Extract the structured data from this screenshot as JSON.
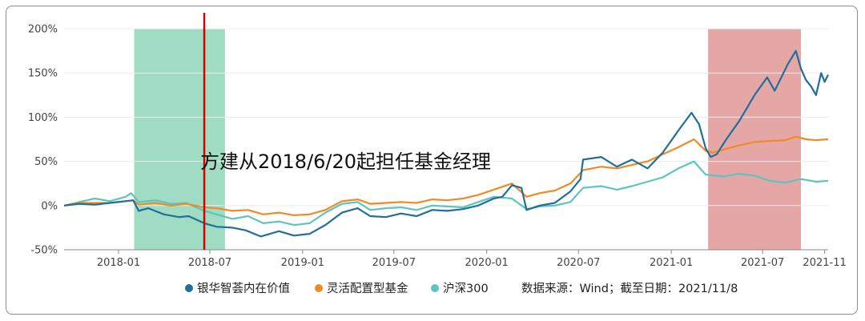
{
  "chart_data": {
    "type": "line",
    "y_unit": "%",
    "ylim": [
      -50,
      200
    ],
    "y_ticks": [
      "200%",
      "150%",
      "100%",
      "50%",
      "0%",
      "-50%"
    ],
    "y_tick_values": [
      200,
      150,
      100,
      50,
      0,
      -50
    ],
    "xlim": [
      "2017-09-15",
      "2021-11-08"
    ],
    "x_ticks": [
      "2018-01",
      "2018-07",
      "2019-01",
      "2019-07",
      "2020-01",
      "2020-07",
      "2021-01",
      "2021-07",
      "2021-11"
    ],
    "x_tick_dates": [
      "2018-01-01",
      "2018-07-01",
      "2019-01-01",
      "2019-07-01",
      "2020-01-01",
      "2020-07-01",
      "2021-01-01",
      "2021-07-01",
      "2021-11-01"
    ],
    "grid": true,
    "legend_position": "bottom",
    "annotation": "方建从2018/6/20起担任基金经理",
    "source_note": "数据来源：Wind；截至日期：2021/11/8",
    "highlights": [
      {
        "start": "2018-02-01",
        "end": "2018-07-31",
        "color": "#9fdcc3"
      },
      {
        "start": "2021-03-15",
        "end": "2021-09-15",
        "color": "#e5a6a6"
      }
    ],
    "marker_line": {
      "date": "2018-06-20",
      "color": "#d40000"
    },
    "series": [
      {
        "name": "银华智荟内在价值",
        "color": "#1f6f9a",
        "points": [
          [
            "2017-09-15",
            0
          ],
          [
            "2017-10-15",
            2
          ],
          [
            "2017-11-15",
            1
          ],
          [
            "2017-12-15",
            3
          ],
          [
            "2018-01-15",
            5
          ],
          [
            "2018-01-30",
            6
          ],
          [
            "2018-02-10",
            -6
          ],
          [
            "2018-03-01",
            -3
          ],
          [
            "2018-04-01",
            -10
          ],
          [
            "2018-05-01",
            -13
          ],
          [
            "2018-05-20",
            -12
          ],
          [
            "2018-06-20",
            -20
          ],
          [
            "2018-07-15",
            -24
          ],
          [
            "2018-08-15",
            -25
          ],
          [
            "2018-09-10",
            -28
          ],
          [
            "2018-10-10",
            -35
          ],
          [
            "2018-11-15",
            -29
          ],
          [
            "2018-12-15",
            -34
          ],
          [
            "2019-01-15",
            -32
          ],
          [
            "2019-02-15",
            -22
          ],
          [
            "2019-03-20",
            -8
          ],
          [
            "2019-04-20",
            -3
          ],
          [
            "2019-05-15",
            -12
          ],
          [
            "2019-06-15",
            -13
          ],
          [
            "2019-07-15",
            -9
          ],
          [
            "2019-08-15",
            -12
          ],
          [
            "2019-09-15",
            -5
          ],
          [
            "2019-10-15",
            -6
          ],
          [
            "2019-11-15",
            -4
          ],
          [
            "2019-12-15",
            0
          ],
          [
            "2020-01-15",
            8
          ],
          [
            "2020-02-01",
            10
          ],
          [
            "2020-02-20",
            23
          ],
          [
            "2020-03-10",
            20
          ],
          [
            "2020-03-20",
            -5
          ],
          [
            "2020-04-15",
            0
          ],
          [
            "2020-05-15",
            3
          ],
          [
            "2020-06-15",
            16
          ],
          [
            "2020-07-05",
            30
          ],
          [
            "2020-07-10",
            52
          ],
          [
            "2020-08-15",
            55
          ],
          [
            "2020-09-15",
            44
          ],
          [
            "2020-10-15",
            52
          ],
          [
            "2020-11-15",
            42
          ],
          [
            "2020-12-15",
            60
          ],
          [
            "2021-01-15",
            85
          ],
          [
            "2021-02-10",
            105
          ],
          [
            "2021-02-25",
            92
          ],
          [
            "2021-03-10",
            65
          ],
          [
            "2021-03-20",
            55
          ],
          [
            "2021-04-01",
            58
          ],
          [
            "2021-04-20",
            75
          ],
          [
            "2021-05-15",
            95
          ],
          [
            "2021-06-15",
            125
          ],
          [
            "2021-07-10",
            145
          ],
          [
            "2021-07-25",
            130
          ],
          [
            "2021-08-20",
            160
          ],
          [
            "2021-09-05",
            175
          ],
          [
            "2021-09-15",
            155
          ],
          [
            "2021-09-25",
            142
          ],
          [
            "2021-10-05",
            135
          ],
          [
            "2021-10-15",
            125
          ],
          [
            "2021-10-25",
            150
          ],
          [
            "2021-11-01",
            140
          ],
          [
            "2021-11-08",
            148
          ]
        ]
      },
      {
        "name": "灵活配置型基金",
        "color": "#f08a24",
        "points": [
          [
            "2017-09-15",
            0
          ],
          [
            "2017-10-15",
            3
          ],
          [
            "2017-11-15",
            3
          ],
          [
            "2017-12-15",
            3
          ],
          [
            "2018-01-15",
            5
          ],
          [
            "2018-01-30",
            6
          ],
          [
            "2018-02-10",
            1
          ],
          [
            "2018-03-15",
            3
          ],
          [
            "2018-04-15",
            0
          ],
          [
            "2018-05-15",
            2
          ],
          [
            "2018-06-20",
            -2
          ],
          [
            "2018-07-15",
            -3
          ],
          [
            "2018-08-15",
            -6
          ],
          [
            "2018-09-15",
            -5
          ],
          [
            "2018-10-15",
            -10
          ],
          [
            "2018-11-15",
            -8
          ],
          [
            "2018-12-15",
            -11
          ],
          [
            "2019-01-15",
            -10
          ],
          [
            "2019-02-15",
            -5
          ],
          [
            "2019-03-20",
            5
          ],
          [
            "2019-04-20",
            7
          ],
          [
            "2019-05-15",
            2
          ],
          [
            "2019-06-15",
            3
          ],
          [
            "2019-07-15",
            4
          ],
          [
            "2019-08-15",
            3
          ],
          [
            "2019-09-15",
            7
          ],
          [
            "2019-10-15",
            6
          ],
          [
            "2019-11-15",
            8
          ],
          [
            "2019-12-15",
            12
          ],
          [
            "2020-01-15",
            18
          ],
          [
            "2020-02-20",
            25
          ],
          [
            "2020-03-20",
            10
          ],
          [
            "2020-04-15",
            14
          ],
          [
            "2020-05-15",
            17
          ],
          [
            "2020-06-15",
            25
          ],
          [
            "2020-07-10",
            40
          ],
          [
            "2020-08-15",
            44
          ],
          [
            "2020-09-15",
            42
          ],
          [
            "2020-10-15",
            46
          ],
          [
            "2020-11-15",
            50
          ],
          [
            "2020-12-15",
            58
          ],
          [
            "2021-01-15",
            66
          ],
          [
            "2021-02-15",
            75
          ],
          [
            "2021-03-10",
            62
          ],
          [
            "2021-03-25",
            60
          ],
          [
            "2021-04-20",
            64
          ],
          [
            "2021-05-15",
            68
          ],
          [
            "2021-06-15",
            72
          ],
          [
            "2021-07-15",
            73
          ],
          [
            "2021-08-15",
            74
          ],
          [
            "2021-09-05",
            78
          ],
          [
            "2021-09-25",
            75
          ],
          [
            "2021-10-15",
            74
          ],
          [
            "2021-11-08",
            75
          ]
        ]
      },
      {
        "name": "沪深300",
        "color": "#5ec4bf",
        "points": [
          [
            "2017-09-15",
            0
          ],
          [
            "2017-10-15",
            4
          ],
          [
            "2017-11-15",
            8
          ],
          [
            "2017-12-15",
            5
          ],
          [
            "2018-01-15",
            10
          ],
          [
            "2018-01-26",
            14
          ],
          [
            "2018-02-10",
            4
          ],
          [
            "2018-03-15",
            6
          ],
          [
            "2018-04-15",
            2
          ],
          [
            "2018-05-15",
            3
          ],
          [
            "2018-06-20",
            -6
          ],
          [
            "2018-07-15",
            -10
          ],
          [
            "2018-08-15",
            -15
          ],
          [
            "2018-09-15",
            -12
          ],
          [
            "2018-10-15",
            -20
          ],
          [
            "2018-11-15",
            -18
          ],
          [
            "2018-12-15",
            -22
          ],
          [
            "2019-01-15",
            -20
          ],
          [
            "2019-02-15",
            -8
          ],
          [
            "2019-03-20",
            2
          ],
          [
            "2019-04-20",
            4
          ],
          [
            "2019-05-15",
            -5
          ],
          [
            "2019-06-15",
            -3
          ],
          [
            "2019-07-15",
            -2
          ],
          [
            "2019-08-15",
            -5
          ],
          [
            "2019-09-15",
            0
          ],
          [
            "2019-10-15",
            -1
          ],
          [
            "2019-11-15",
            -2
          ],
          [
            "2019-12-15",
            4
          ],
          [
            "2020-01-15",
            10
          ],
          [
            "2020-02-20",
            8
          ],
          [
            "2020-03-20",
            -4
          ],
          [
            "2020-04-15",
            -1
          ],
          [
            "2020-05-15",
            0
          ],
          [
            "2020-06-15",
            4
          ],
          [
            "2020-07-10",
            20
          ],
          [
            "2020-08-15",
            22
          ],
          [
            "2020-09-15",
            18
          ],
          [
            "2020-10-15",
            22
          ],
          [
            "2020-11-15",
            27
          ],
          [
            "2020-12-15",
            32
          ],
          [
            "2021-01-15",
            42
          ],
          [
            "2021-02-15",
            50
          ],
          [
            "2021-03-10",
            35
          ],
          [
            "2021-04-15",
            33
          ],
          [
            "2021-05-15",
            36
          ],
          [
            "2021-06-15",
            34
          ],
          [
            "2021-07-15",
            28
          ],
          [
            "2021-08-15",
            26
          ],
          [
            "2021-09-15",
            30
          ],
          [
            "2021-10-15",
            27
          ],
          [
            "2021-11-08",
            28
          ]
        ]
      }
    ]
  }
}
